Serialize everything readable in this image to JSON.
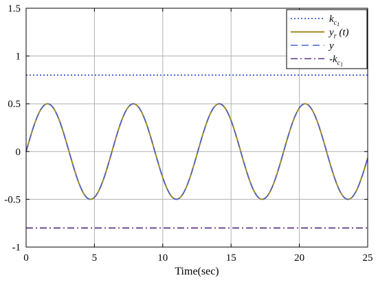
{
  "chart_data": {
    "type": "line",
    "xlabel": "Time(sec)",
    "ylabel": "",
    "title": "",
    "xlim": [
      0,
      25
    ],
    "ylim": [
      -1,
      1.5
    ],
    "xticks": [
      0,
      5,
      10,
      15,
      20,
      25
    ],
    "yticks": [
      -1,
      -0.5,
      0,
      0.5,
      1,
      1.5
    ],
    "xtick_labels": [
      "0",
      "5",
      "10",
      "15",
      "20",
      "25"
    ],
    "ytick_labels": [
      "-1",
      "-0.5",
      "0",
      "0.5",
      "1",
      "1.5"
    ],
    "grid": true,
    "legend_position": "top-right",
    "series": [
      {
        "name": "k_c1",
        "legend": {
          "base": "k",
          "sub": "c",
          "subsub": "1"
        },
        "style": "dotted",
        "color": "#1f3fbf",
        "x": [
          0,
          25
        ],
        "y": [
          0.8,
          0.8
        ]
      },
      {
        "name": "y_r(t)",
        "legend": {
          "base": "y",
          "sub": "r",
          "tail": " (t)"
        },
        "style": "solid",
        "color": "#a08a1e",
        "function": "0.5*sin(t)",
        "x": [
          0,
          1.57,
          3.14,
          4.71,
          6.28,
          7.85,
          9.42,
          11.0,
          12.57,
          14.14,
          15.71,
          17.28,
          18.85,
          20.42,
          21.99,
          23.56,
          25
        ],
        "y": [
          0,
          0.5,
          0,
          -0.5,
          0,
          0.5,
          0,
          -0.5,
          0,
          0.5,
          0,
          -0.5,
          0,
          0.5,
          0,
          -0.5,
          -0.07
        ]
      },
      {
        "name": "y",
        "legend": {
          "base": "y"
        },
        "style": "dashed",
        "color": "#4a5fcf",
        "function": "0.5*sin(t)",
        "x": [
          0,
          1.57,
          3.14,
          4.71,
          6.28,
          7.85,
          9.42,
          11.0,
          12.57,
          14.14,
          15.71,
          17.28,
          18.85,
          20.42,
          21.99,
          23.56,
          25
        ],
        "y": [
          0,
          0.5,
          0,
          -0.5,
          0,
          0.5,
          0,
          -0.5,
          0,
          0.5,
          0,
          -0.5,
          0,
          0.5,
          0,
          -0.5,
          -0.07
        ]
      },
      {
        "name": "-k_c1",
        "legend": {
          "prefix": "-",
          "base": "k",
          "sub": "c",
          "subsub": "1"
        },
        "style": "dashdot",
        "color": "#5a3080",
        "x": [
          0,
          25
        ],
        "y": [
          -0.8,
          -0.8
        ]
      }
    ]
  }
}
